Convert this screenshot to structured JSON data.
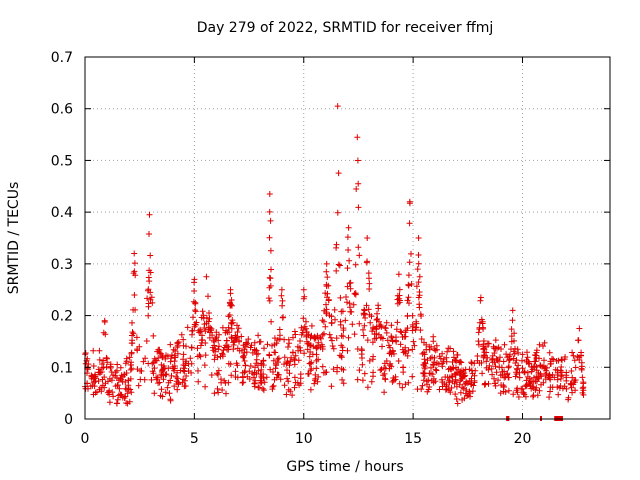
{
  "chart_data": {
    "type": "scatter",
    "title": "Day 279 of 2022, SRMTID for receiver ffmj",
    "xlabel": "GPS time / hours",
    "ylabel": "SRMTID / TECUs",
    "xlim": [
      0,
      24
    ],
    "ylim": [
      0,
      0.7
    ],
    "grid": true,
    "marker": "+",
    "series_color": "#e00000",
    "x_ticks": [
      {
        "value": 0,
        "label": "0"
      },
      {
        "value": 5,
        "label": "5"
      },
      {
        "value": 10,
        "label": "10"
      },
      {
        "value": 15,
        "label": "15"
      },
      {
        "value": 20,
        "label": "20"
      }
    ],
    "y_ticks": [
      {
        "value": 0,
        "label": "0"
      },
      {
        "value": 0.1,
        "label": "0.1"
      },
      {
        "value": 0.2,
        "label": "0.2"
      },
      {
        "value": 0.3,
        "label": "0.3"
      },
      {
        "value": 0.4,
        "label": "0.4"
      },
      {
        "value": 0.5,
        "label": "0.5"
      },
      {
        "value": 0.6,
        "label": "0.6"
      },
      {
        "value": 0.7,
        "label": "0.7"
      }
    ],
    "baseline_levels": [
      [
        0.0,
        0.075
      ],
      [
        0.5,
        0.09
      ],
      [
        1.0,
        0.07
      ],
      [
        1.5,
        0.065
      ],
      [
        2.0,
        0.08
      ],
      [
        2.5,
        0.095
      ],
      [
        3.0,
        0.1
      ],
      [
        3.5,
        0.095
      ],
      [
        4.0,
        0.09
      ],
      [
        4.5,
        0.11
      ],
      [
        5.0,
        0.12
      ],
      [
        5.5,
        0.14
      ],
      [
        6.0,
        0.11
      ],
      [
        6.5,
        0.12
      ],
      [
        7.0,
        0.125
      ],
      [
        7.5,
        0.11
      ],
      [
        8.0,
        0.1
      ],
      [
        8.5,
        0.11
      ],
      [
        9.0,
        0.12
      ],
      [
        9.5,
        0.1
      ],
      [
        10.0,
        0.12
      ],
      [
        10.5,
        0.12
      ],
      [
        11.0,
        0.125
      ],
      [
        11.5,
        0.14
      ],
      [
        12.0,
        0.15
      ],
      [
        12.5,
        0.14
      ],
      [
        13.0,
        0.135
      ],
      [
        13.5,
        0.13
      ],
      [
        14.0,
        0.125
      ],
      [
        14.5,
        0.13
      ],
      [
        15.0,
        0.13
      ],
      [
        15.5,
        0.11
      ],
      [
        16.0,
        0.1
      ],
      [
        16.5,
        0.09
      ],
      [
        17.0,
        0.08
      ],
      [
        17.5,
        0.075
      ],
      [
        18.0,
        0.09
      ],
      [
        18.5,
        0.1
      ],
      [
        19.0,
        0.095
      ],
      [
        19.5,
        0.085
      ],
      [
        20.0,
        0.08
      ],
      [
        20.5,
        0.09
      ],
      [
        21.0,
        0.1
      ],
      [
        21.5,
        0.09
      ],
      [
        22.0,
        0.08
      ],
      [
        22.5,
        0.075
      ],
      [
        22.8,
        0.07
      ]
    ],
    "peaks": [
      {
        "x": 0.9,
        "y": 0.19,
        "width": 0.08
      },
      {
        "x": 2.25,
        "y": 0.32,
        "width": 0.08
      },
      {
        "x": 2.95,
        "y": 0.395,
        "width": 0.1
      },
      {
        "x": 5.0,
        "y": 0.27,
        "width": 0.08
      },
      {
        "x": 5.55,
        "y": 0.275,
        "width": 0.12
      },
      {
        "x": 6.65,
        "y": 0.25,
        "width": 0.1
      },
      {
        "x": 8.45,
        "y": 0.435,
        "width": 0.06
      },
      {
        "x": 9.0,
        "y": 0.25,
        "width": 0.08
      },
      {
        "x": 10.0,
        "y": 0.25,
        "width": 0.1
      },
      {
        "x": 11.05,
        "y": 0.3,
        "width": 0.1
      },
      {
        "x": 11.55,
        "y": 0.605,
        "width": 0.08
      },
      {
        "x": 12.05,
        "y": 0.37,
        "width": 0.1
      },
      {
        "x": 12.45,
        "y": 0.545,
        "width": 0.08
      },
      {
        "x": 12.9,
        "y": 0.35,
        "width": 0.1
      },
      {
        "x": 13.4,
        "y": 0.22,
        "width": 0.1
      },
      {
        "x": 14.35,
        "y": 0.28,
        "width": 0.08
      },
      {
        "x": 14.85,
        "y": 0.42,
        "width": 0.08
      },
      {
        "x": 15.25,
        "y": 0.35,
        "width": 0.08
      },
      {
        "x": 18.1,
        "y": 0.235,
        "width": 0.1
      },
      {
        "x": 19.55,
        "y": 0.21,
        "width": 0.08
      },
      {
        "x": 22.6,
        "y": 0.175,
        "width": 0.08
      }
    ],
    "point_count": 1400,
    "data_gaps": [
      {
        "x_start": 19.25,
        "x_end": 19.4
      },
      {
        "x_start": 20.8,
        "x_end": 20.85
      },
      {
        "x_start": 21.45,
        "x_end": 21.85
      }
    ]
  }
}
